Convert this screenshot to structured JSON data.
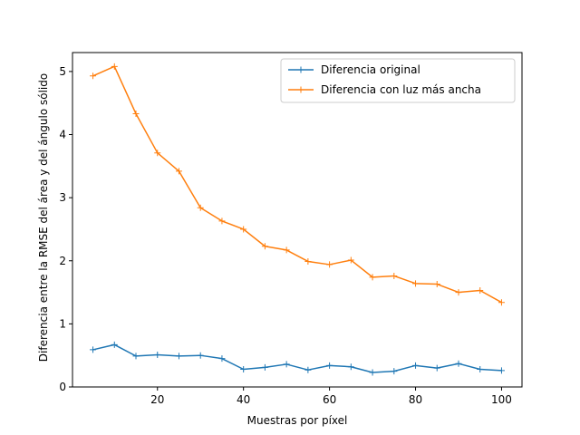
{
  "chart_data": {
    "type": "line",
    "title": "",
    "xlabel": "Muestras por píxel",
    "ylabel": "Diferencia entre la RMSE del área y del ángulo sólido",
    "xlim": [
      0.25,
      104.75
    ],
    "ylim": [
      0,
      5.3
    ],
    "xticks": [
      20,
      40,
      60,
      80,
      100
    ],
    "yticks": [
      0,
      1,
      2,
      3,
      4,
      5
    ],
    "grid": false,
    "legend_position": "top-right",
    "x": [
      5,
      10,
      15,
      20,
      25,
      30,
      35,
      40,
      45,
      50,
      55,
      60,
      65,
      70,
      75,
      80,
      85,
      90,
      95,
      100
    ],
    "series": [
      {
        "name": "Diferencia original",
        "color": "#1f77b4",
        "marker": "plus",
        "values": [
          0.59,
          0.67,
          0.49,
          0.51,
          0.49,
          0.5,
          0.45,
          0.28,
          0.31,
          0.36,
          0.27,
          0.34,
          0.32,
          0.23,
          0.25,
          0.34,
          0.3,
          0.37,
          0.28,
          0.26
        ]
      },
      {
        "name": "Diferencia con luz más ancha",
        "color": "#ff7f0e",
        "marker": "plus",
        "values": [
          4.93,
          5.08,
          4.33,
          3.71,
          3.42,
          2.84,
          2.63,
          2.5,
          2.23,
          2.17,
          1.99,
          1.94,
          2.01,
          1.74,
          1.76,
          1.64,
          1.63,
          1.5,
          1.53,
          1.34
        ]
      }
    ]
  }
}
